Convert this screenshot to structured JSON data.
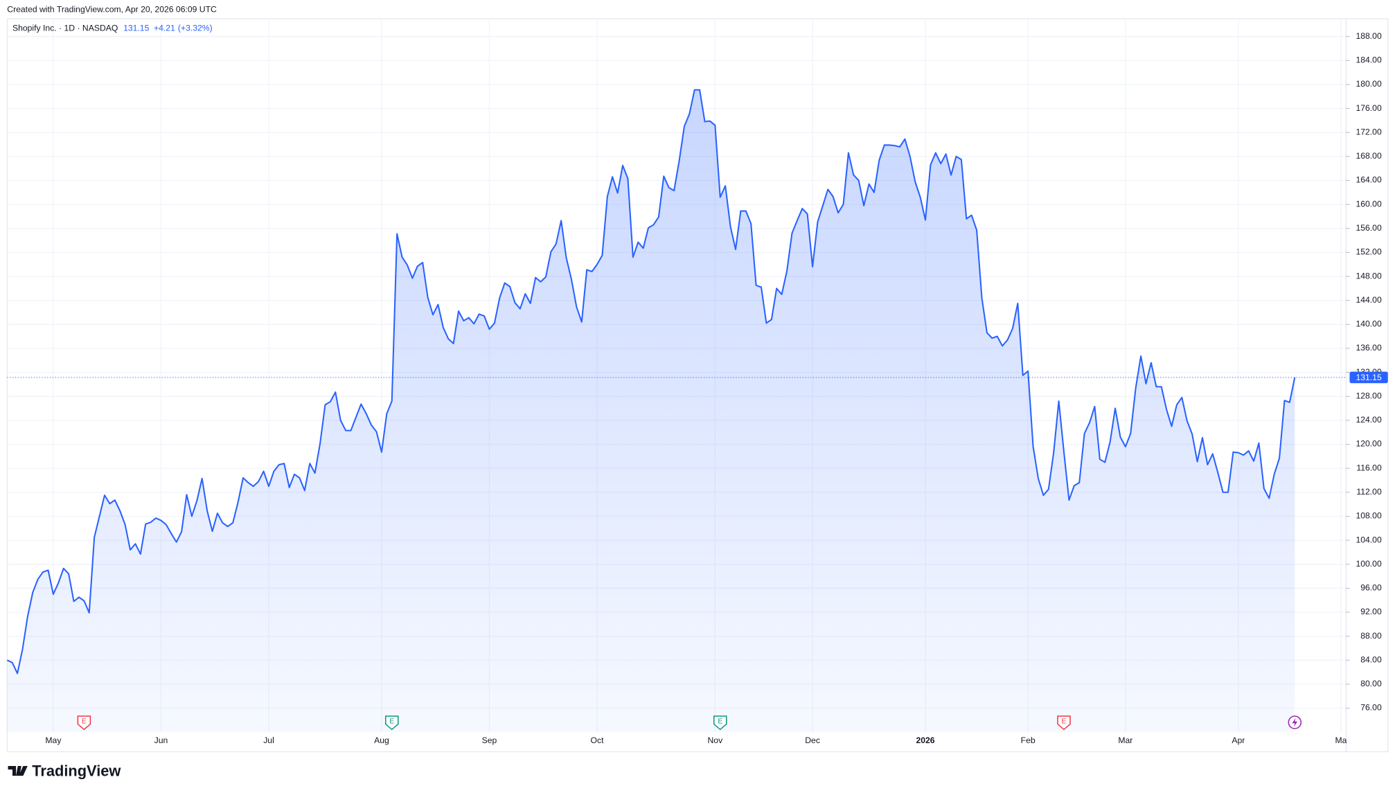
{
  "caption": "Created with TradingView.com, Apr 20, 2026 06:09 UTC",
  "brand": "TradingView",
  "chart_data": {
    "type": "area",
    "change": "+4.21",
    "change_pct": "(+3.32%)",
    "series": [
      {
        "name": "Shopify Inc. · 1D · NASDAQ",
        "color": "#2962ff",
        "values": [
          84.0,
          83.6,
          81.8,
          85.8,
          91.3,
          95.3,
          97.5,
          98.7,
          99.0,
          95.0,
          96.9,
          99.3,
          98.4,
          93.8,
          94.5,
          93.9,
          91.9,
          104.5,
          108.0,
          111.5,
          110.1,
          110.7,
          108.9,
          106.6,
          102.4,
          103.4,
          101.7,
          106.7,
          107.0,
          107.7,
          107.3,
          106.6,
          105.1,
          103.7,
          105.4,
          111.6,
          108.0,
          110.6,
          114.3,
          108.9,
          105.5,
          108.5,
          106.9,
          106.3,
          106.9,
          110.3,
          114.4,
          113.6,
          113.0,
          113.8,
          115.5,
          113.0,
          115.5,
          116.6,
          116.8,
          112.8,
          115.0,
          114.4,
          112.3,
          116.8,
          115.2,
          120.1,
          126.6,
          127.1,
          128.7,
          124.0,
          122.3,
          122.3,
          124.5,
          126.7,
          125.1,
          123.2,
          122.1,
          118.7,
          125.1,
          127.2,
          155.1,
          151.2,
          149.9,
          147.7,
          149.7,
          150.3,
          144.5,
          141.6,
          143.3,
          139.5,
          137.6,
          136.8,
          142.2,
          140.6,
          141.1,
          140.1,
          141.7,
          141.4,
          139.2,
          140.2,
          144.4,
          146.9,
          146.3,
          143.6,
          142.6,
          145.1,
          143.5,
          147.8,
          147.1,
          147.9,
          152.1,
          153.4,
          157.3,
          151.1,
          147.5,
          142.9,
          140.4,
          149.1,
          148.8,
          150.0,
          151.5,
          161.3,
          164.6,
          161.9,
          166.5,
          164.3,
          151.2,
          153.7,
          152.7,
          156.1,
          156.6,
          157.9,
          164.7,
          162.8,
          162.3,
          167.2,
          173.0,
          175.1,
          179.1,
          179.1,
          173.8,
          173.9,
          173.2,
          161.2,
          163.1,
          156.3,
          152.5,
          158.9,
          158.9,
          156.8,
          146.5,
          146.2,
          140.2,
          140.8,
          146.0,
          145.0,
          148.9,
          155.2,
          157.3,
          159.3,
          158.4,
          149.6,
          157.1,
          159.8,
          162.5,
          161.3,
          158.6,
          160.0,
          168.6,
          164.9,
          164.0,
          159.8,
          163.4,
          162.0,
          167.4,
          169.9,
          169.9,
          169.8,
          169.6,
          170.9,
          168.0,
          163.8,
          161.2,
          157.4,
          166.6,
          168.6,
          166.8,
          168.4,
          164.9,
          168.0,
          167.5,
          157.6,
          158.2,
          155.7,
          144.4,
          138.6,
          137.7,
          138.0,
          136.4,
          137.4,
          139.3,
          143.5,
          131.5,
          132.2,
          119.6,
          114.3,
          111.5,
          112.5,
          118.6,
          127.2,
          118.7,
          110.7,
          113.1,
          113.6,
          121.8,
          123.6,
          126.3,
          117.5,
          117.0,
          120.4,
          126.0,
          121.2,
          119.6,
          121.8,
          129.4,
          134.7,
          130.1,
          133.6,
          129.6,
          129.6,
          125.8,
          123.0,
          126.6,
          127.8,
          123.9,
          121.7,
          117.1,
          121.1,
          116.6,
          118.4,
          115.3,
          112.0,
          112.0,
          118.7,
          118.6,
          118.2,
          118.9,
          117.2,
          120.2,
          112.6,
          111.0,
          115.0,
          117.7,
          127.3,
          127.0,
          131.15
        ]
      }
    ],
    "xlim": [
      0,
      261
    ],
    "xticks": [
      {
        "value": 9,
        "label": "May"
      },
      {
        "value": 30,
        "label": "Jun"
      },
      {
        "value": 51,
        "label": "Jul"
      },
      {
        "value": 73,
        "label": "Aug"
      },
      {
        "value": 94,
        "label": "Sep"
      },
      {
        "value": 115,
        "label": "Oct"
      },
      {
        "value": 138,
        "label": "Nov"
      },
      {
        "value": 157,
        "label": "Dec"
      },
      {
        "value": 179,
        "label": "2026"
      },
      {
        "value": 199,
        "label": "Feb"
      },
      {
        "value": 218,
        "label": "Mar"
      },
      {
        "value": 240,
        "label": "Apr"
      },
      {
        "value": 260,
        "label": "Ma"
      }
    ],
    "ylim": [
      72,
      191
    ],
    "yticks": [
      {
        "value": 76,
        "label": "76.00"
      },
      {
        "value": 80,
        "label": "80.00"
      },
      {
        "value": 84,
        "label": "84.00"
      },
      {
        "value": 88,
        "label": "88.00"
      },
      {
        "value": 92,
        "label": "92.00"
      },
      {
        "value": 96,
        "label": "96.00"
      },
      {
        "value": 100,
        "label": "100.00"
      },
      {
        "value": 104,
        "label": "104.00"
      },
      {
        "value": 108,
        "label": "108.00"
      },
      {
        "value": 112,
        "label": "112.00"
      },
      {
        "value": 116,
        "label": "116.00"
      },
      {
        "value": 120,
        "label": "120.00"
      },
      {
        "value": 124,
        "label": "124.00"
      },
      {
        "value": 128,
        "label": "128.00"
      },
      {
        "value": 132,
        "label": "132.00"
      },
      {
        "value": 136,
        "label": "136.00"
      },
      {
        "value": 140,
        "label": "140.00"
      },
      {
        "value": 144,
        "label": "144.00"
      },
      {
        "value": 148,
        "label": "148.00"
      },
      {
        "value": 152,
        "label": "152.00"
      },
      {
        "value": 156,
        "label": "156.00"
      },
      {
        "value": 160,
        "label": "160.00"
      },
      {
        "value": 164,
        "label": "164.00"
      },
      {
        "value": 168,
        "label": "168.00"
      },
      {
        "value": 172,
        "label": "172.00"
      },
      {
        "value": 176,
        "label": "176.00"
      },
      {
        "value": 180,
        "label": "180.00"
      },
      {
        "value": 184,
        "label": "184.00"
      },
      {
        "value": 188,
        "label": "188.00"
      }
    ],
    "grid": true,
    "events": [
      {
        "x": 15,
        "label": "E",
        "color": "#f23645"
      },
      {
        "x": 75,
        "label": "E",
        "color": "#089981"
      },
      {
        "x": 139,
        "label": "E",
        "color": "#089981"
      },
      {
        "x": 206,
        "label": "E",
        "color": "#f23645"
      },
      {
        "x": 251,
        "color": "#9c27b0"
      }
    ]
  }
}
